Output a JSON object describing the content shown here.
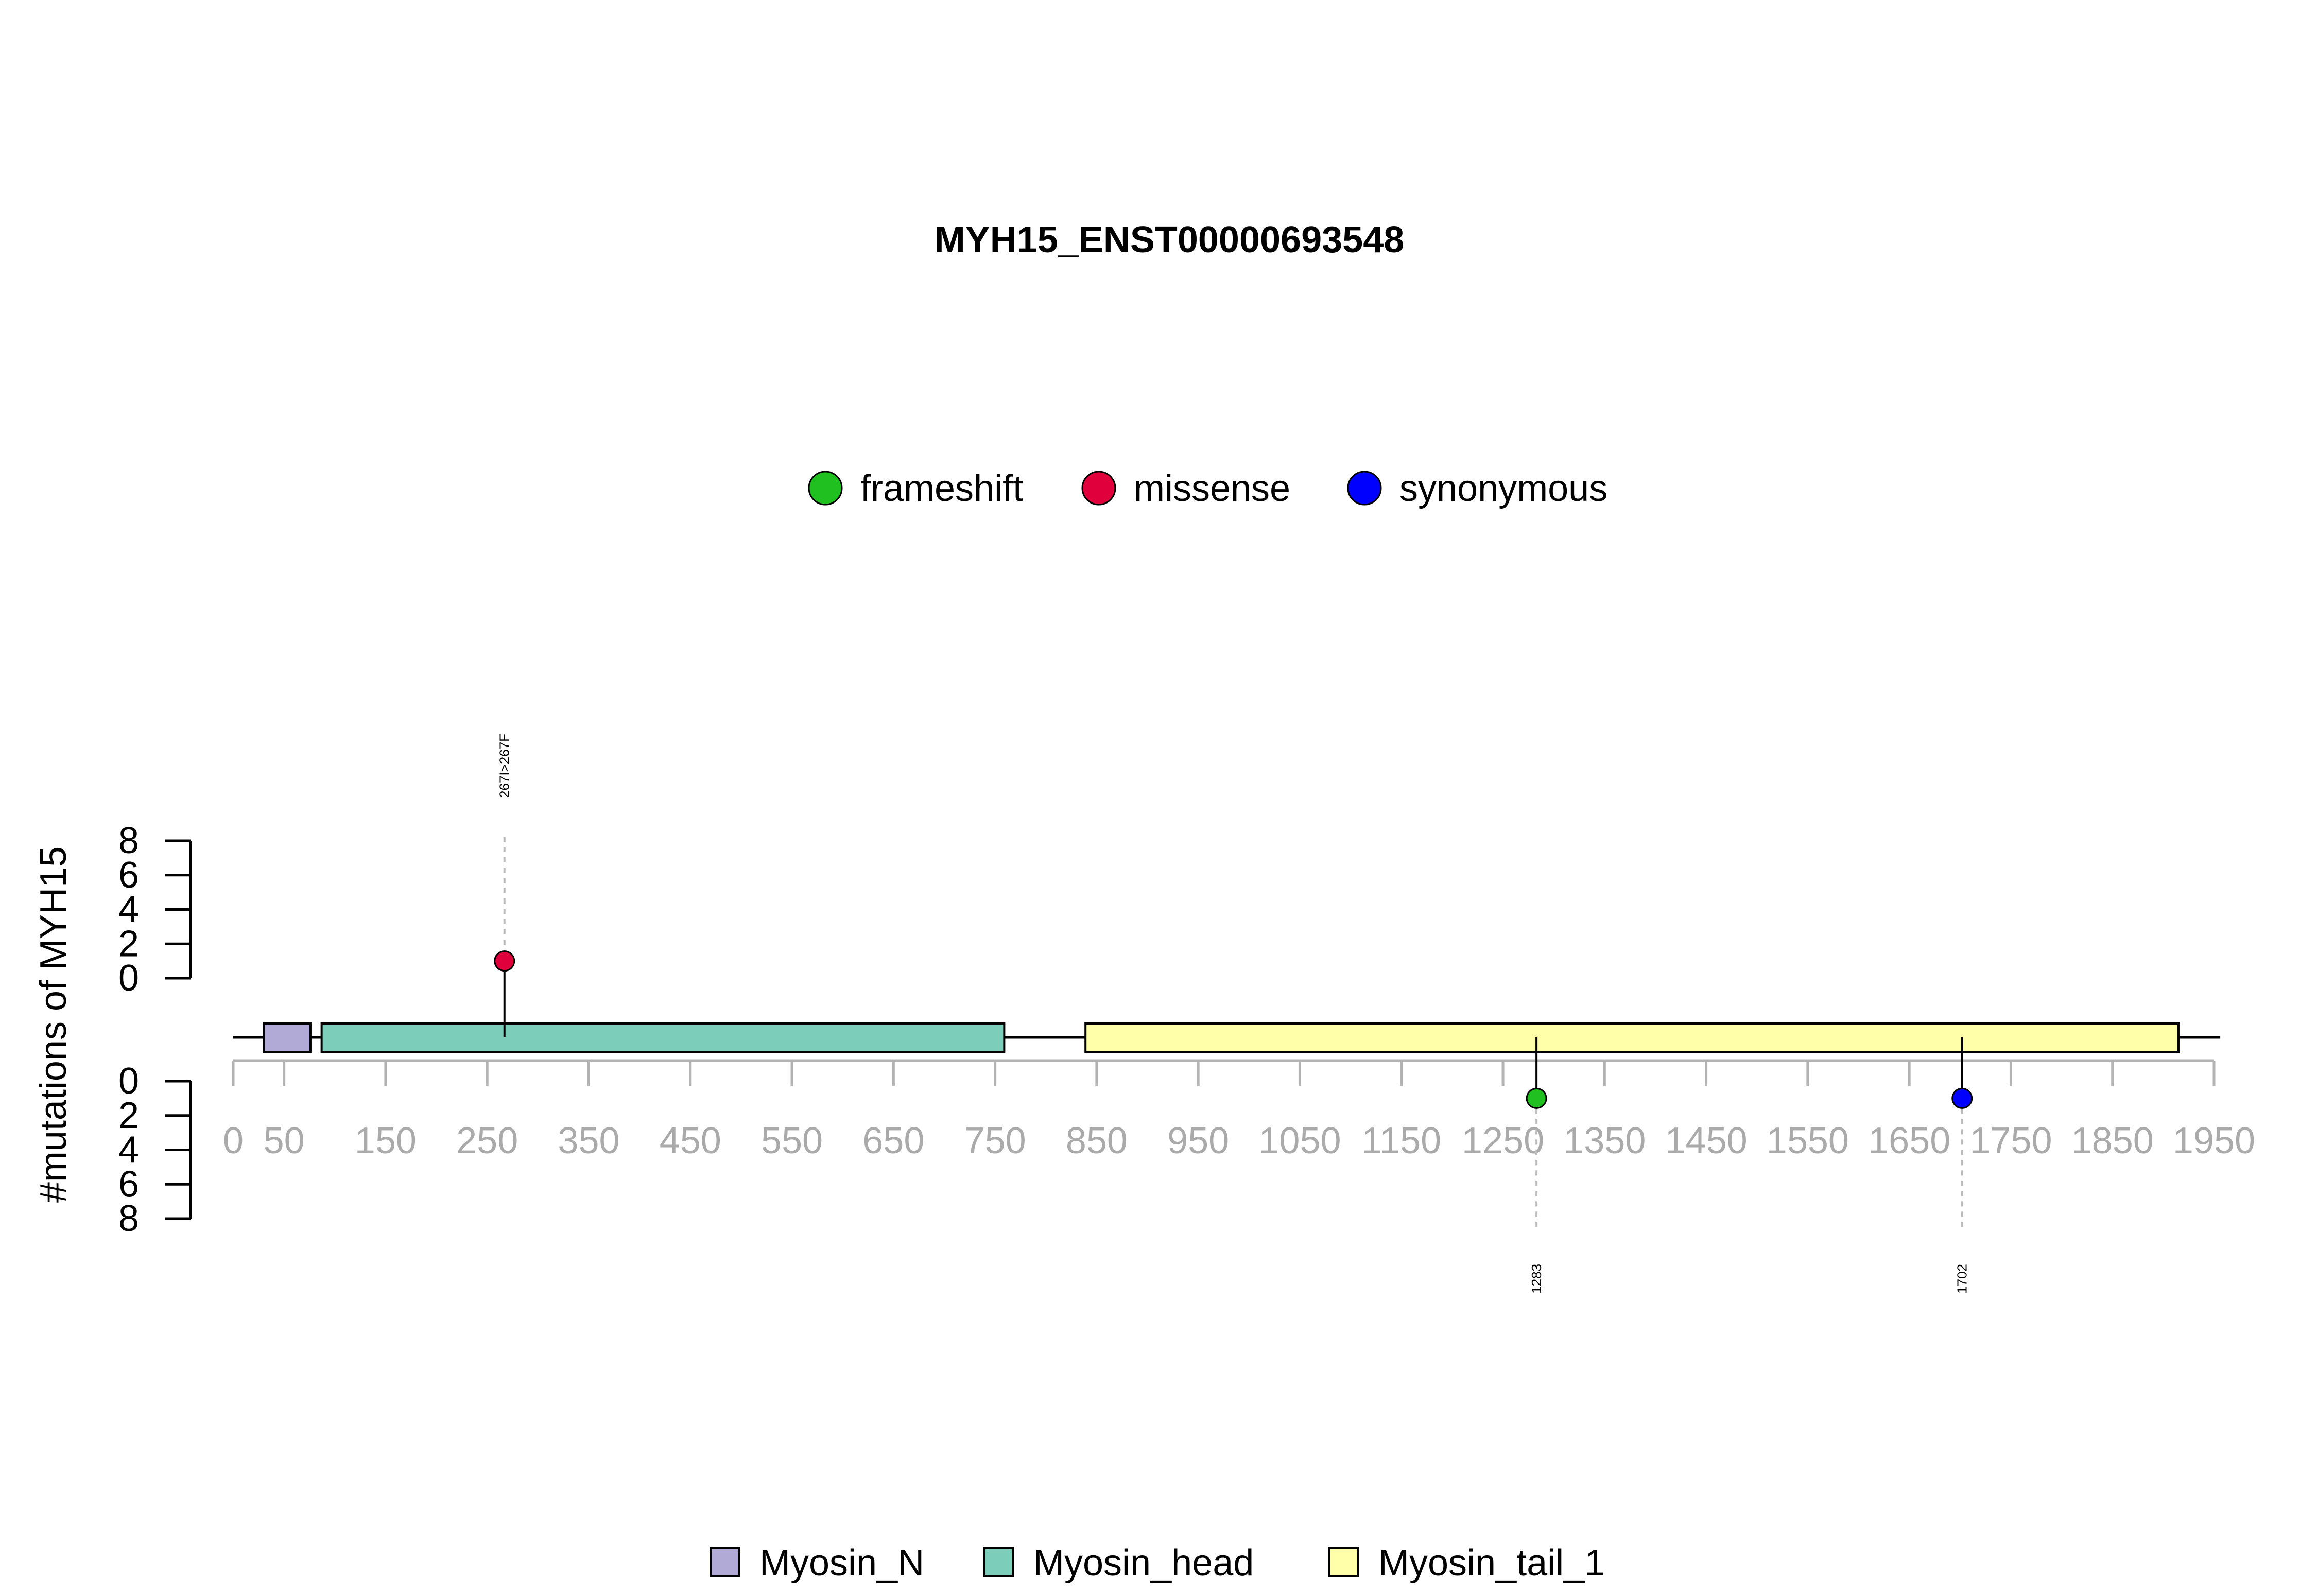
{
  "chart_data": {
    "type": "lollipop",
    "title": "MYH15_ENST00000693548",
    "ylabel": "#mutations of MYH15",
    "protein_length": 1946,
    "x_range": [
      0,
      1950
    ],
    "x_ticks": [
      0,
      50,
      150,
      250,
      350,
      450,
      550,
      650,
      750,
      850,
      950,
      1050,
      1150,
      1250,
      1350,
      1450,
      1550,
      1650,
      1750,
      1850,
      1950
    ],
    "x_tick_labels": [
      "0",
      "50",
      "150",
      "250",
      "350",
      "450",
      "550",
      "650",
      "750",
      "850",
      "950",
      "1050",
      "1150",
      "1250",
      "1350",
      "1450",
      "1550",
      "1650",
      "1750",
      "1850",
      "1950"
    ],
    "y_range": [
      0,
      8
    ],
    "y_ticks": [
      0,
      2,
      4,
      6,
      8
    ],
    "y_tick_labels": [
      "0",
      "2",
      "4",
      "6",
      "8"
    ],
    "mutation_types": [
      {
        "name": "frameshift",
        "color": "#1fc01f"
      },
      {
        "name": "missense",
        "color": "#e0003c"
      },
      {
        "name": "synonymous",
        "color": "#0000ff"
      }
    ],
    "domains": [
      {
        "name": "Myosin_N",
        "start": 30,
        "end": 76,
        "color": "#b1aad6"
      },
      {
        "name": "Myosin_head",
        "start": 87,
        "end": 759,
        "color": "#7dcdbb"
      },
      {
        "name": "Myosin_tail_1",
        "start": 839,
        "end": 1915,
        "color": "#ffffaa"
      }
    ],
    "mutations": [
      {
        "position": 267,
        "count": 1,
        "type": "missense",
        "side": "top",
        "label": "267I>267F"
      },
      {
        "position": 1283,
        "count": 1,
        "type": "frameshift",
        "side": "bottom",
        "label": "1283"
      },
      {
        "position": 1702,
        "count": 1,
        "type": "synonymous",
        "side": "bottom",
        "label": "1702"
      }
    ]
  }
}
